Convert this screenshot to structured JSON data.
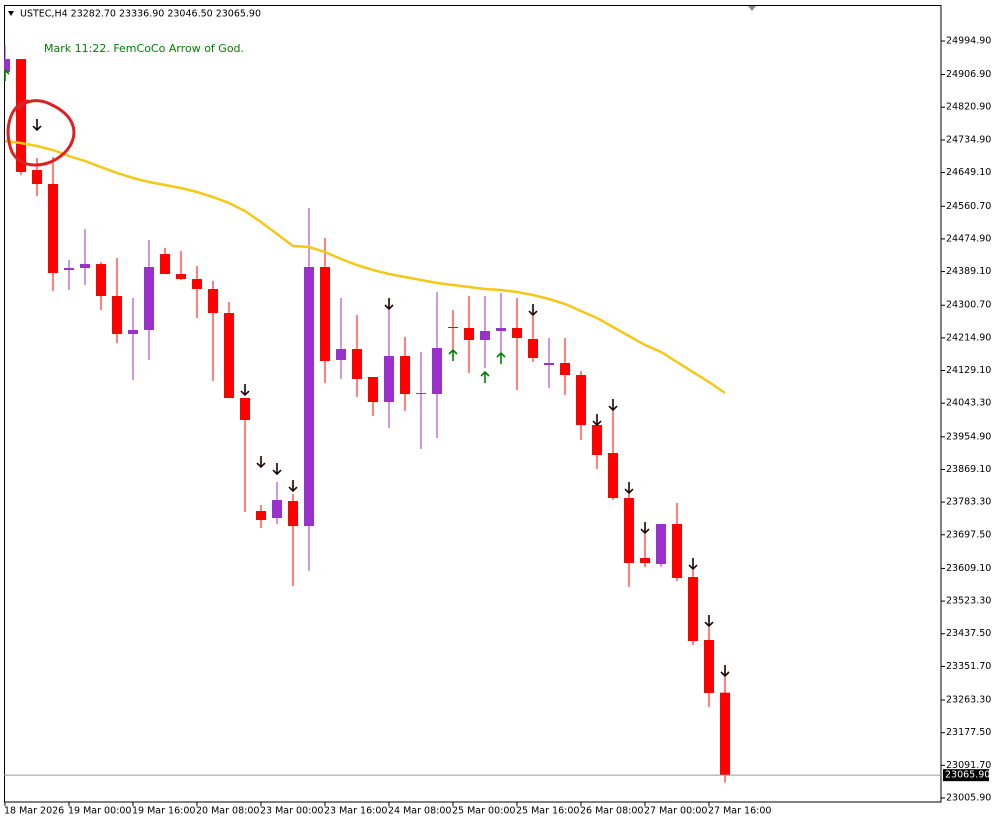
{
  "chart_data": {
    "type": "candlestick",
    "header": "USTEC,H4 23282.70 23336.90 23046.50 23065.90",
    "annotation": "Mark 11:22. FemCoCo Arrow of God.",
    "categories": [
      "18 Mar 2026",
      null,
      null,
      null,
      "19 Mar 00:00",
      null,
      null,
      null,
      "19 Mar 16:00",
      null,
      null,
      null,
      "20 Mar 08:00",
      null,
      null,
      null,
      "23 Mar 00:00",
      null,
      null,
      null,
      "23 Mar 16:00",
      null,
      null,
      null,
      "24 Mar 08:00",
      null,
      null,
      null,
      "25 Mar 00:00",
      null,
      null,
      null,
      "25 Mar 16:00",
      null,
      null,
      null,
      "26 Mar 08:00",
      null,
      null,
      null,
      "27 Mar 00:00",
      null,
      null,
      null,
      "27 Mar 16:00",
      null
    ],
    "open": [
      24913.4,
      24947.6,
      24655.9,
      24619.2,
      24393.2,
      24398.4,
      24408.9,
      24324.9,
      24225.1,
      24235.6,
      24435.2,
      24382.7,
      24369.5,
      24343.3,
      24280.2,
      24056.9,
      23760.0,
      23741.6,
      23786.3,
      23720.5,
      24401.1,
      24156.8,
      24185.7,
      24112.1,
      24046.4,
      24167.3,
      24067.4,
      24067.4,
      24243.5,
      24240.8,
      24209.3,
      24233.0,
      24240.8,
      24212.0,
      24143.6,
      24148.9,
      24117.3,
      23985.9,
      23912.4,
      23794.1,
      23636.5,
      23620.7,
      23725.8,
      23586.5,
      23421.1,
      23282.7
    ],
    "high": [
      24984.4,
      24947.6,
      24687.5,
      24690.1,
      24419.5,
      24500.9,
      24414.2,
      24424.7,
      24319.6,
      24472.0,
      24451.0,
      24443.1,
      24403.7,
      24364.3,
      24309.1,
      24056.9,
      23775.7,
      23836.1,
      23804.6,
      24556.1,
      24477.3,
      24319.6,
      24275.0,
      24112.1,
      24296.0,
      24217.2,
      24177.8,
      24335.4,
      24288.1,
      24324.9,
      24324.9,
      24332.8,
      24319.6,
      24285.5,
      24214.6,
      24214.6,
      24127.8,
      24004.3,
      24025.4,
      23807.2,
      23699.5,
      23725.8,
      23781.0,
      23604.9,
      23455.2,
      23336.9
    ],
    "low": [
      24897.7,
      24642.8,
      24587.6,
      24338.0,
      24340.6,
      24353.8,
      24288.1,
      24201.5,
      24104.2,
      24156.8,
      24382.7,
      24366.9,
      24267.1,
      24101.6,
      24056.9,
      23757.3,
      23715.3,
      23725.8,
      23562.9,
      23602.3,
      24096.3,
      24106.8,
      24059.5,
      24009.6,
      23978.0,
      24022.7,
      23922.9,
      23951.8,
      24169.9,
      24122.6,
      24135.7,
      24164.6,
      24077.9,
      24151.5,
      24083.1,
      24064.8,
      23946.5,
      23870.3,
      23788.9,
      23560.3,
      23612.8,
      23612.8,
      23576.0,
      23407.9,
      23245.0,
      23046.5
    ],
    "close": [
      24947.6,
      24650.7,
      24619.2,
      24385.3,
      24398.4,
      24408.9,
      24324.9,
      24225.1,
      24235.6,
      24401.1,
      24382.7,
      24369.5,
      24343.3,
      24280.2,
      24056.9,
      23999.1,
      23736.3,
      23788.9,
      23720.5,
      24401.1,
      24154.1,
      24185.7,
      24106.8,
      24046.4,
      24167.3,
      24067.4,
      24070.0,
      24188.3,
      24240.8,
      24209.3,
      24233.0,
      24240.8,
      24214.6,
      24162.0,
      24148.9,
      24117.3,
      23985.9,
      23907.1,
      23794.1,
      23623.3,
      23623.3,
      23725.8,
      23583.9,
      23418.4,
      23281.8,
      23065.9
    ],
    "bull_color": "#9932cc",
    "bear_color": "#ff0000",
    "ma": {
      "color": "#f5c816",
      "values": [
        24732.2,
        24726.9,
        24719.0,
        24708.5,
        24692.7,
        24679.6,
        24663.8,
        24648.1,
        24635.0,
        24624.4,
        24616.5,
        24608.7,
        24598.2,
        24585.0,
        24569.3,
        24548.2,
        24519.3,
        24487.8,
        24456.3,
        24453.6,
        24440.5,
        24422.1,
        24406.3,
        24393.2,
        24382.7,
        24374.8,
        24366.9,
        24359.0,
        24353.8,
        24348.5,
        24343.3,
        24340.6,
        24335.4,
        24327.5,
        24317.0,
        24303.9,
        24285.5,
        24267.1,
        24243.5,
        24219.8,
        24196.2,
        24177.8,
        24151.5,
        24125.2,
        24098.9,
        24070.0
      ]
    },
    "down_arrows": [
      null,
      null,
      24774.2,
      null,
      null,
      null,
      null,
      null,
      null,
      null,
      null,
      null,
      null,
      null,
      null,
      24077.9,
      23888.7,
      23870.3,
      23825.6,
      null,
      null,
      null,
      null,
      null,
      24303.9,
      null,
      null,
      null,
      null,
      null,
      null,
      null,
      null,
      24288.1,
      null,
      null,
      null,
      23999.1,
      24038.5,
      23820.4,
      23715.3,
      null,
      null,
      23620.7,
      23470.9,
      23339.6
    ],
    "up_arrows": [
      24905.6,
      null,
      null,
      null,
      null,
      null,
      null,
      null,
      null,
      null,
      null,
      null,
      null,
      null,
      null,
      null,
      null,
      null,
      null,
      null,
      null,
      null,
      null,
      null,
      null,
      null,
      null,
      null,
      24169.9,
      null,
      24112.1,
      24162.0,
      null,
      null,
      null,
      null,
      null,
      null,
      null,
      null,
      null,
      null,
      null,
      null,
      null,
      null
    ],
    "down_arrow_color": "#1a0000",
    "up_arrow_color": "#008000",
    "current_price": {
      "value": 23065.9,
      "label": "23065.90"
    },
    "ylim": [
      22995.4,
      25086.9
    ],
    "yticks": [
      {
        "value": 24994.9,
        "label": "24994.90"
      },
      {
        "value": 24906.9,
        "label": "24906.90"
      },
      {
        "value": 24820.9,
        "label": "24820.90"
      },
      {
        "value": 24734.9,
        "label": "24734.90"
      },
      {
        "value": 24649.1,
        "label": "24649.10"
      },
      {
        "value": 24560.7,
        "label": "24560.70"
      },
      {
        "value": 24474.9,
        "label": "24474.90"
      },
      {
        "value": 24389.1,
        "label": "24389.10"
      },
      {
        "value": 24300.7,
        "label": "24300.70"
      },
      {
        "value": 24214.9,
        "label": "24214.90"
      },
      {
        "value": 24129.1,
        "label": "24129.10"
      },
      {
        "value": 24043.3,
        "label": "24043.30"
      },
      {
        "value": 23954.9,
        "label": "23954.90"
      },
      {
        "value": 23869.1,
        "label": "23869.10"
      },
      {
        "value": 23783.3,
        "label": "23783.30"
      },
      {
        "value": 23697.5,
        "label": "23697.50"
      },
      {
        "value": 23609.1,
        "label": "23609.10"
      },
      {
        "value": 23523.3,
        "label": "23523.30"
      },
      {
        "value": 23437.5,
        "label": "23437.50"
      },
      {
        "value": 23351.7,
        "label": "23351.70"
      },
      {
        "value": 23263.3,
        "label": "23263.30"
      },
      {
        "value": 23177.5,
        "label": "23177.50"
      },
      {
        "value": 23091.7,
        "label": "23091.70"
      },
      {
        "value": 23005.9,
        "label": "23005.90"
      }
    ]
  }
}
